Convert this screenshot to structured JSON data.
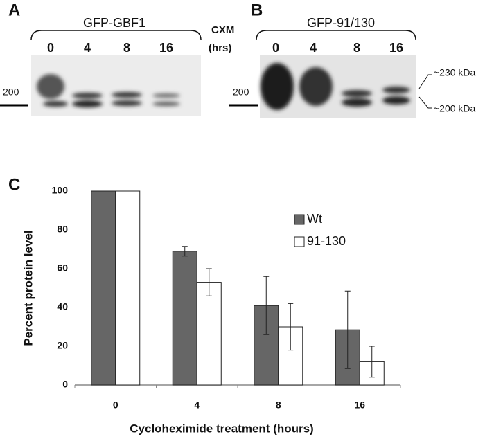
{
  "panel_a": {
    "letter": "A",
    "title": "GFP-GBF1",
    "lanes": [
      "0",
      "4",
      "8",
      "16"
    ],
    "marker": "200"
  },
  "treatment_label": {
    "name": "CXM",
    "unit": "(hrs)"
  },
  "panel_b": {
    "letter": "B",
    "title": "GFP-91/130",
    "lanes": [
      "0",
      "4",
      "8",
      "16"
    ],
    "marker": "200",
    "band_labels": [
      "~230 kDa",
      "~200 kDa"
    ]
  },
  "panel_c": {
    "letter": "C"
  },
  "chart_data": {
    "type": "bar",
    "x_label": "Cycloheximide treatment (hours)",
    "y_label": "Percent protein level",
    "categories": [
      "0",
      "4",
      "8",
      "16"
    ],
    "series": [
      {
        "name": "Wt",
        "color": "#666666",
        "values": [
          100,
          69,
          41,
          28.5
        ],
        "errors": [
          0,
          2.5,
          15,
          20
        ]
      },
      {
        "name": "91-130",
        "color": "#ffffff",
        "values": [
          100,
          53,
          30,
          12
        ],
        "errors": [
          0,
          7,
          12,
          8
        ]
      }
    ],
    "ylim": [
      0,
      100
    ],
    "yticks": [
      0,
      20,
      40,
      60,
      80,
      100
    ],
    "grid": false,
    "legend": "right"
  }
}
